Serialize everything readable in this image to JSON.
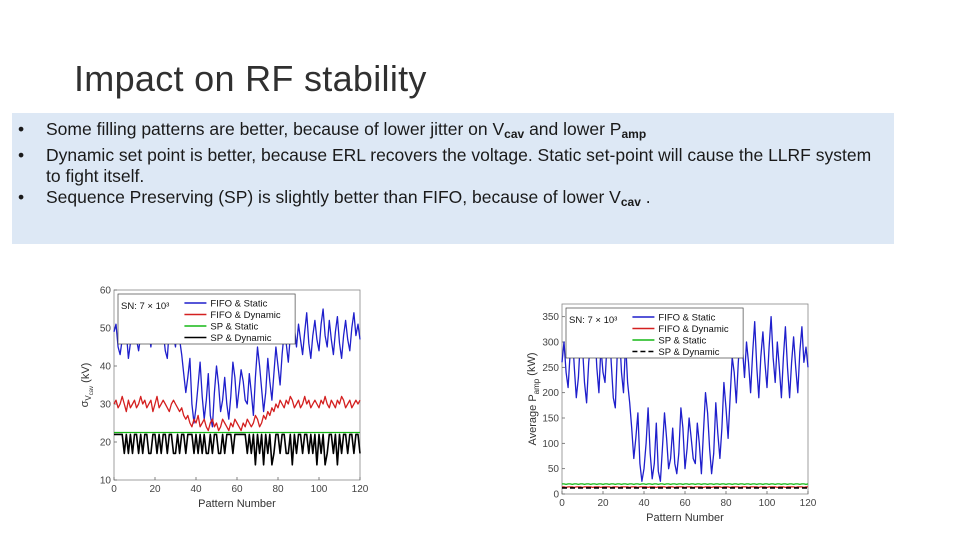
{
  "slide": {
    "title": "Impact on RF stability",
    "bullets": [
      {
        "pre": "Some filling patterns are better, because of lower jitter on V",
        "sub1": "cav",
        "mid": " and lower P",
        "sub2": "amp",
        "post": ""
      },
      {
        "pre": "Dynamic set point is better, because ERL recovers the voltage. Static set-point will cause the LLRF system to fight itself.",
        "sub1": "",
        "mid": "",
        "sub2": "",
        "post": ""
      },
      {
        "pre": "Sequence Preserving (SP) is slightly better than FIFO, because of lower V",
        "sub1": "cav",
        "mid": " .",
        "sub2": "",
        "post": ""
      }
    ]
  },
  "colors": {
    "blue": "#1f1fcc",
    "red": "#d42020",
    "green": "#16b816",
    "black": "#000000"
  },
  "chart_data": [
    {
      "type": "line",
      "xlabel": "Pattern Number",
      "ylabel": "σ",
      "ylabel_sub": "V",
      "ylabel_sub2": "cav",
      "ylabel_unit": "(kV)",
      "xlim": [
        0,
        120
      ],
      "ylim": [
        10,
        60
      ],
      "xticks": [
        0,
        20,
        40,
        60,
        80,
        100,
        120
      ],
      "yticks": [
        10,
        20,
        30,
        40,
        50,
        60
      ],
      "annotation": "SN: 7 × 10³",
      "legend_position": "top-center",
      "series": [
        {
          "name": "FIFO & Static",
          "color": "#1f1fcc",
          "dash": "",
          "values": [
            49,
            51,
            45,
            43,
            47,
            52,
            49,
            42,
            46,
            53,
            51,
            47,
            44,
            48,
            52,
            50,
            54,
            49,
            45,
            51,
            48,
            46,
            52,
            55,
            49,
            44,
            42,
            50,
            54,
            48,
            45,
            52,
            47,
            43,
            38,
            33,
            37,
            42,
            30,
            25,
            29,
            35,
            41,
            32,
            26,
            31,
            38,
            27,
            24,
            33,
            40,
            35,
            28,
            31,
            37,
            30,
            26,
            32,
            41,
            37,
            29,
            34,
            39,
            36,
            31,
            30,
            38,
            33,
            27,
            37,
            45,
            40,
            34,
            28,
            33,
            42,
            36,
            31,
            38,
            45,
            40,
            35,
            43,
            49,
            46,
            41,
            48,
            53,
            50,
            45,
            51,
            47,
            43,
            49,
            54,
            46,
            42,
            48,
            52,
            47,
            44,
            51,
            55,
            48,
            45,
            52,
            47,
            43,
            49,
            53,
            46,
            42,
            48,
            52,
            47,
            44,
            50,
            54,
            48,
            51,
            47
          ]
        },
        {
          "name": "FIFO & Dynamic",
          "color": "#d42020",
          "dash": "",
          "values": [
            30,
            31,
            29,
            30,
            32,
            30,
            28,
            31,
            29,
            30,
            31,
            29,
            30,
            32,
            30,
            31,
            29,
            30,
            31,
            28,
            30,
            32,
            29,
            30,
            31,
            30,
            29,
            28,
            30,
            31,
            30,
            29,
            28,
            29,
            27,
            26,
            27,
            25,
            24,
            26,
            25,
            27,
            24,
            25,
            26,
            24,
            23,
            25,
            26,
            24,
            25,
            23,
            24,
            26,
            25,
            24,
            23,
            25,
            24,
            26,
            25,
            24,
            23,
            25,
            24,
            26,
            25,
            24,
            25,
            27,
            26,
            24,
            25,
            27,
            26,
            28,
            27,
            29,
            28,
            30,
            29,
            31,
            30,
            29,
            31,
            30,
            32,
            31,
            29,
            30,
            31,
            29,
            30,
            32,
            30,
            31,
            29,
            30,
            31,
            30,
            29,
            31,
            30,
            32,
            30,
            29,
            31,
            30,
            29,
            31,
            30,
            32,
            31,
            29,
            30,
            31,
            29,
            30,
            31,
            30,
            31
          ]
        },
        {
          "name": "SP & Static",
          "color": "#16b816",
          "dash": "",
          "values": [
            22.5,
            22.5,
            22.5,
            22.5,
            22.5,
            22.5,
            22.5,
            22.5,
            22.5,
            22.5,
            22.5,
            22.5,
            22.5,
            22.5,
            22.5,
            22.5,
            22.5,
            22.5,
            22.5,
            22.5,
            22.5,
            22.5,
            22.5,
            22.5,
            22.5,
            22.5,
            22.5,
            22.5,
            22.5,
            22.5,
            22.5,
            22.5,
            22.5,
            22.5,
            22.5,
            22.5,
            22.5,
            22.5,
            22.5,
            22.5,
            22.5,
            22.5,
            22.5,
            22.5,
            22.5,
            22.5,
            22.5,
            22.5,
            22.5,
            22.5,
            22.5,
            22.5,
            22.5,
            22.5,
            22.5,
            22.5,
            22.5,
            22.5,
            22.5,
            22.5,
            22.5,
            22.5,
            22.5,
            22.5,
            22.5,
            22.5,
            22.5,
            22.5,
            22.5,
            22.5,
            22.5,
            22.5,
            22.5,
            22.5,
            22.5,
            22.5,
            22.5,
            22.5,
            22.5,
            22.5,
            22.5,
            22.5,
            22.5,
            22.5,
            22.5,
            22.5,
            22.5,
            22.5,
            22.5,
            22.5,
            22.5,
            22.5,
            22.5,
            22.5,
            22.5,
            22.5,
            22.5,
            22.5,
            22.5,
            22.5,
            22.5,
            22.5,
            22.5,
            22.5,
            22.5,
            22.5,
            22.5,
            22.5,
            22.5,
            22.5,
            22.5,
            22.5,
            22.5,
            22.5,
            22.5,
            22.5,
            22.5,
            22.5,
            22.5,
            22.5,
            22.5
          ]
        },
        {
          "name": "SP & Dynamic",
          "color": "#000000",
          "dash": "",
          "values": [
            22,
            22,
            22,
            22,
            22,
            17,
            22,
            17,
            22,
            17,
            22,
            22,
            17,
            22,
            17,
            22,
            22,
            17,
            17,
            22,
            22,
            17,
            22,
            17,
            22,
            22,
            17,
            22,
            22,
            17,
            17,
            22,
            17,
            22,
            22,
            17,
            22,
            22,
            22,
            17,
            22,
            17,
            22,
            17,
            22,
            17,
            17,
            22,
            17,
            22,
            22,
            17,
            17,
            22,
            17,
            22,
            22,
            22,
            17,
            22,
            22,
            22,
            22,
            22,
            22,
            17,
            22,
            17,
            22,
            14,
            22,
            17,
            22,
            14,
            22,
            17,
            22,
            14,
            17,
            22,
            22,
            17,
            22,
            22,
            17,
            17,
            22,
            14,
            22,
            17,
            22,
            22,
            17,
            22,
            22,
            17,
            22,
            17,
            22,
            14,
            22,
            17,
            22,
            14,
            17,
            22,
            22,
            17,
            22,
            14,
            22,
            17,
            22,
            22,
            17,
            22,
            22,
            17,
            22,
            22,
            17
          ]
        }
      ]
    },
    {
      "type": "line",
      "xlabel": "Pattern Number",
      "ylabel": "Average P",
      "ylabel_sub": "amp",
      "ylabel_unit": "(kW)",
      "xlim": [
        0,
        120
      ],
      "ylim": [
        0,
        375
      ],
      "xticks": [
        0,
        20,
        40,
        60,
        80,
        100,
        120
      ],
      "yticks": [
        0,
        50,
        100,
        150,
        200,
        250,
        300,
        350
      ],
      "annotation": "SN: 7 × 10³",
      "legend_position": "top-center",
      "series": [
        {
          "name": "FIFO & Static",
          "color": "#1f1fcc",
          "dash": "",
          "values": [
            260,
            300,
            240,
            210,
            280,
            320,
            250,
            190,
            230,
            310,
            290,
            220,
            180,
            260,
            300,
            270,
            330,
            250,
            200,
            290,
            240,
            220,
            300,
            340,
            260,
            190,
            170,
            280,
            320,
            240,
            200,
            300,
            220,
            180,
            130,
            70,
            110,
            160,
            60,
            25,
            50,
            100,
            170,
            80,
            30,
            60,
            140,
            45,
            25,
            90,
            160,
            110,
            50,
            70,
            130,
            60,
            40,
            80,
            170,
            130,
            50,
            90,
            150,
            110,
            70,
            60,
            140,
            100,
            40,
            120,
            200,
            160,
            90,
            40,
            80,
            180,
            120,
            70,
            130,
            220,
            170,
            110,
            190,
            270,
            240,
            180,
            260,
            320,
            290,
            230,
            300,
            260,
            200,
            280,
            340,
            250,
            190,
            270,
            320,
            260,
            210,
            290,
            350,
            270,
            220,
            300,
            250,
            190,
            270,
            330,
            250,
            190,
            260,
            310,
            250,
            200,
            280,
            330,
            260,
            290,
            250
          ]
        },
        {
          "name": "FIFO & Dynamic",
          "color": "#d42020",
          "dash": "",
          "values": [
            14,
            14,
            13,
            14,
            14,
            14,
            13,
            14,
            14,
            14,
            13,
            14,
            14,
            14,
            14,
            13,
            14,
            14,
            14,
            13,
            14,
            14,
            14,
            14,
            13,
            14,
            14,
            14,
            13,
            14,
            14,
            14,
            14,
            13,
            14,
            14,
            14,
            13,
            14,
            14,
            14,
            14,
            13,
            14,
            14,
            14,
            13,
            14,
            14,
            14,
            14,
            13,
            14,
            14,
            14,
            13,
            14,
            14,
            14,
            14,
            13,
            14,
            14,
            14,
            13,
            14,
            14,
            14,
            14,
            13,
            14,
            14,
            14,
            13,
            14,
            14,
            14,
            14,
            13,
            14,
            14,
            14,
            13,
            14,
            14,
            14,
            14,
            13,
            14,
            14,
            14,
            13,
            14,
            14,
            14,
            14,
            13,
            14,
            14,
            14,
            13,
            14,
            14,
            14,
            14,
            13,
            14,
            14,
            14,
            13,
            14,
            14,
            14,
            14,
            13,
            14,
            14,
            14,
            13,
            14,
            14
          ]
        },
        {
          "name": "SP & Static",
          "color": "#16b816",
          "dash": "",
          "values": [
            20,
            20,
            19,
            20,
            20,
            19,
            20,
            20,
            19,
            20,
            20,
            19,
            20,
            20,
            19,
            20,
            20,
            19,
            20,
            20,
            19,
            20,
            20,
            19,
            20,
            20,
            19,
            20,
            20,
            19,
            20,
            20,
            19,
            20,
            20,
            19,
            20,
            20,
            19,
            20,
            20,
            19,
            20,
            20,
            19,
            20,
            20,
            19,
            20,
            20,
            19,
            20,
            20,
            19,
            20,
            20,
            19,
            20,
            20,
            19,
            20,
            20,
            19,
            20,
            20,
            19,
            20,
            20,
            19,
            20,
            20,
            19,
            20,
            20,
            19,
            20,
            20,
            19,
            20,
            20,
            19,
            20,
            20,
            19,
            20,
            20,
            19,
            20,
            20,
            19,
            20,
            20,
            19,
            20,
            20,
            19,
            20,
            20,
            19,
            20,
            20,
            19,
            20,
            20,
            19,
            20,
            20,
            19,
            20,
            20,
            19,
            20,
            20,
            19,
            20,
            20,
            19,
            20,
            20,
            19,
            20
          ]
        },
        {
          "name": "SP & Dynamic",
          "color": "#000000",
          "dash": "5,3",
          "values": [
            12,
            12,
            12,
            12,
            12,
            12,
            12,
            12,
            12,
            12,
            12,
            12,
            12,
            12,
            12,
            12,
            12,
            12,
            12,
            12,
            12,
            12,
            12,
            12,
            12,
            12,
            12,
            12,
            12,
            12,
            12,
            12,
            12,
            12,
            12,
            12,
            12,
            12,
            12,
            12,
            12,
            12,
            12,
            12,
            12,
            12,
            12,
            12,
            12,
            12,
            12,
            12,
            12,
            12,
            12,
            12,
            12,
            12,
            12,
            12,
            12,
            12,
            12,
            12,
            12,
            12,
            12,
            12,
            12,
            12,
            12,
            12,
            12,
            12,
            12,
            12,
            12,
            12,
            12,
            12,
            12,
            12,
            12,
            12,
            12,
            12,
            12,
            12,
            12,
            12,
            12,
            12,
            12,
            12,
            12,
            12,
            12,
            12,
            12,
            12,
            12,
            12,
            12,
            12,
            12,
            12,
            12,
            12,
            12,
            12,
            12,
            12,
            12,
            12,
            12,
            12,
            12,
            12,
            12,
            12,
            12
          ]
        }
      ]
    }
  ]
}
